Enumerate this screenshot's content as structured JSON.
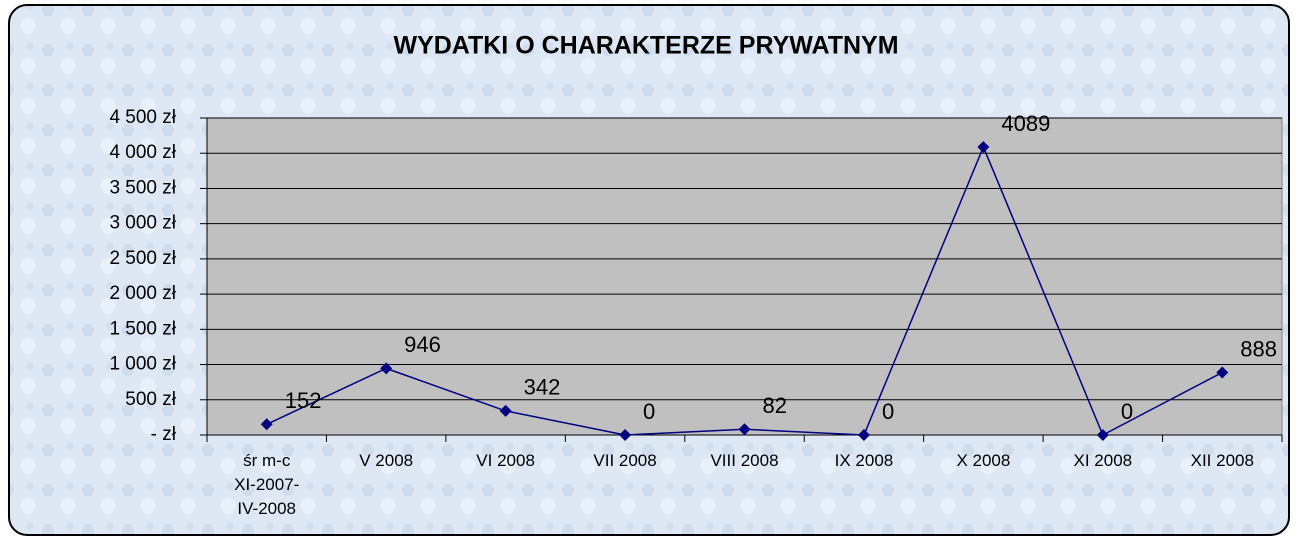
{
  "chart_data": {
    "type": "line",
    "title": "WYDATKI O CHARAKTERZE PRYWATNYM",
    "categories": [
      "śr m-c\nXI-2007-\nIV-2008",
      "V 2008",
      "VI 2008",
      "VII 2008",
      "VIII 2008",
      "IX 2008",
      "X 2008",
      "XI 2008",
      "XII 2008"
    ],
    "values": [
      152,
      946,
      342,
      0,
      82,
      0,
      4089,
      0,
      888
    ],
    "color": "#000080",
    "ylim": [
      0,
      4500
    ],
    "yticks": [
      {
        "value": 0,
        "label": "- zł"
      },
      {
        "value": 500,
        "label": "500 zł"
      },
      {
        "value": 1000,
        "label": "1 000 zł"
      },
      {
        "value": 1500,
        "label": "1 500 zł"
      },
      {
        "value": 2000,
        "label": "2 000 zł"
      },
      {
        "value": 2500,
        "label": "2 500 zł"
      },
      {
        "value": 3000,
        "label": "3 000 zł"
      },
      {
        "value": 3500,
        "label": "3 500 zł"
      },
      {
        "value": 4000,
        "label": "4 000 zł"
      },
      {
        "value": 4500,
        "label": "4 500 zł"
      }
    ],
    "grid": true
  }
}
